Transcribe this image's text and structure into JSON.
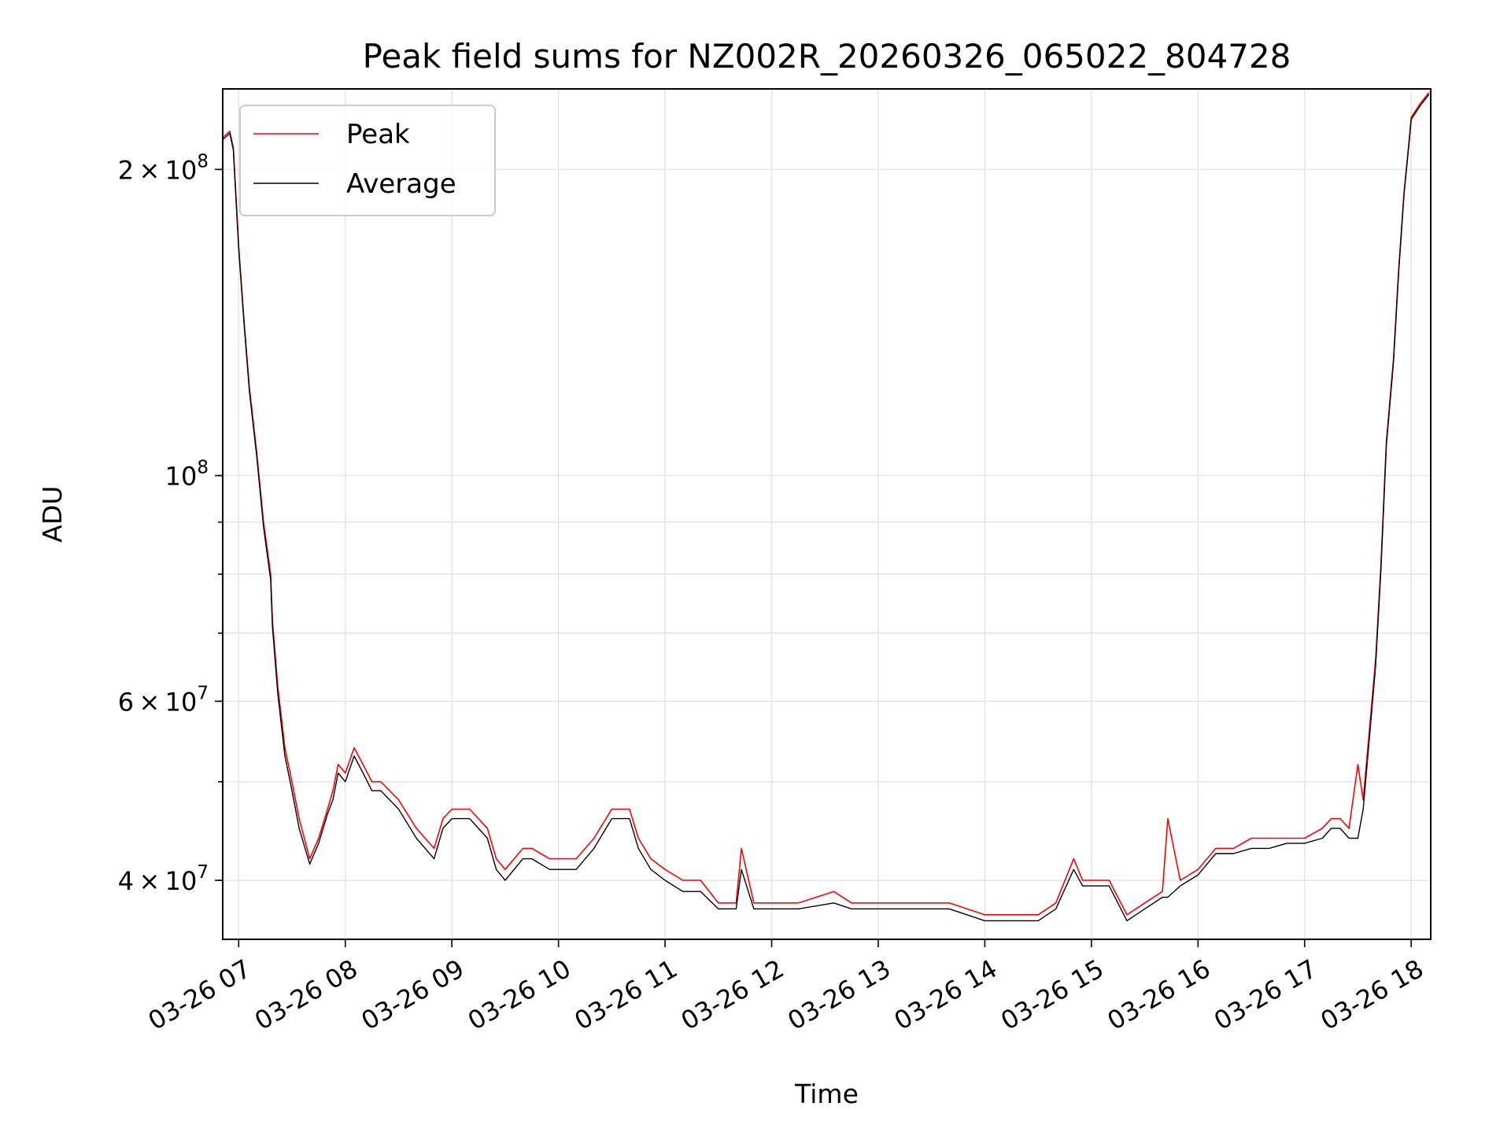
{
  "chart_data": {
    "type": "line",
    "title": "Peak field sums for NZ002R_20260326_065022_804728",
    "xlabel": "Time",
    "ylabel": "ADU",
    "y_scale": "log",
    "ylim": [
      35000000,
      240000000
    ],
    "xlim": [
      "03-26 06:51",
      "03-26 18:11"
    ],
    "grid": true,
    "legend_position": "upper-left",
    "x_ticks": [
      "03-26 07",
      "03-26 08",
      "03-26 09",
      "03-26 10",
      "03-26 11",
      "03-26 12",
      "03-26 13",
      "03-26 14",
      "03-26 15",
      "03-26 16",
      "03-26 17",
      "03-26 18"
    ],
    "y_ticks": [
      {
        "value": 40000000,
        "coef": "4",
        "exp": "7"
      },
      {
        "value": 60000000,
        "coef": "6",
        "exp": "7"
      },
      {
        "value": 100000000,
        "coef": "",
        "exp": "8"
      },
      {
        "value": 200000000,
        "coef": "2",
        "exp": "8"
      }
    ],
    "series": [
      {
        "name": "Peak",
        "color": "#ff0000",
        "x": [
          "03-26 06:51",
          "03-26 06:55",
          "03-26 06:57",
          "03-26 07:00",
          "03-26 07:03",
          "03-26 07:06",
          "03-26 07:10",
          "03-26 07:14",
          "03-26 07:18",
          "03-26 07:19",
          "03-26 07:22",
          "03-26 07:26",
          "03-26 07:30",
          "03-26 07:34",
          "03-26 07:40",
          "03-26 07:45",
          "03-26 07:50",
          "03-26 07:53",
          "03-26 07:56",
          "03-26 08:00",
          "03-26 08:05",
          "03-26 08:10",
          "03-26 08:15",
          "03-26 08:20",
          "03-26 08:30",
          "03-26 08:40",
          "03-26 08:50",
          "03-26 08:55",
          "03-26 09:00",
          "03-26 09:10",
          "03-26 09:20",
          "03-26 09:25",
          "03-26 09:30",
          "03-26 09:40",
          "03-26 09:45",
          "03-26 09:55",
          "03-26 10:00",
          "03-26 10:10",
          "03-26 10:20",
          "03-26 10:30",
          "03-26 10:40",
          "03-26 10:45",
          "03-26 10:52",
          "03-26 11:00",
          "03-26 11:10",
          "03-26 11:20",
          "03-26 11:30",
          "03-26 11:40",
          "03-26 11:43",
          "03-26 11:50",
          "03-26 12:00",
          "03-26 12:15",
          "03-26 12:35",
          "03-26 12:45",
          "03-26 13:00",
          "03-26 13:10",
          "03-26 13:20",
          "03-26 13:30",
          "03-26 13:40",
          "03-26 13:50",
          "03-26 14:00",
          "03-26 14:15",
          "03-26 14:30",
          "03-26 14:40",
          "03-26 14:50",
          "03-26 14:55",
          "03-26 15:00",
          "03-26 15:10",
          "03-26 15:20",
          "03-26 15:30",
          "03-26 15:40",
          "03-26 15:43",
          "03-26 15:50",
          "03-26 16:00",
          "03-26 16:10",
          "03-26 16:20",
          "03-26 16:30",
          "03-26 16:40",
          "03-26 16:50",
          "03-26 17:00",
          "03-26 17:10",
          "03-26 17:15",
          "03-26 17:20",
          "03-26 17:25",
          "03-26 17:30",
          "03-26 17:33",
          "03-26 17:36",
          "03-26 17:40",
          "03-26 17:43",
          "03-26 17:46",
          "03-26 17:50",
          "03-26 17:53",
          "03-26 17:56",
          "03-26 17:59",
          "03-26 18:00",
          "03-26 18:05",
          "03-26 18:10"
        ],
        "y": [
          215000000,
          218000000,
          210000000,
          168000000,
          142000000,
          122000000,
          106000000,
          90000000,
          80000000,
          72000000,
          62000000,
          54000000,
          50000000,
          46000000,
          42000000,
          44000000,
          47000000,
          49000000,
          52000000,
          51000000,
          54000000,
          52000000,
          50000000,
          50000000,
          48000000,
          45000000,
          43000000,
          46000000,
          47000000,
          47000000,
          45000000,
          42000000,
          41000000,
          43000000,
          43000000,
          42000000,
          42000000,
          42000000,
          44000000,
          47000000,
          47000000,
          44000000,
          42000000,
          41000000,
          40000000,
          40000000,
          38000000,
          38000000,
          43000000,
          38000000,
          38000000,
          38000000,
          39000000,
          38000000,
          38000000,
          38000000,
          38000000,
          38000000,
          38000000,
          37500000,
          37000000,
          37000000,
          37000000,
          38000000,
          42000000,
          40000000,
          40000000,
          40000000,
          37000000,
          38000000,
          39000000,
          46000000,
          40000000,
          41000000,
          43000000,
          43000000,
          44000000,
          44000000,
          44000000,
          44000000,
          45000000,
          46000000,
          46000000,
          45000000,
          52000000,
          48000000,
          55000000,
          66000000,
          82000000,
          108000000,
          130000000,
          160000000,
          190000000,
          215000000,
          225000000,
          232000000,
          238000000
        ]
      },
      {
        "name": "Average",
        "color": "#000000",
        "x": [
          "03-26 06:51",
          "03-26 06:55",
          "03-26 06:57",
          "03-26 07:00",
          "03-26 07:03",
          "03-26 07:06",
          "03-26 07:10",
          "03-26 07:14",
          "03-26 07:18",
          "03-26 07:19",
          "03-26 07:22",
          "03-26 07:26",
          "03-26 07:30",
          "03-26 07:34",
          "03-26 07:40",
          "03-26 07:45",
          "03-26 07:50",
          "03-26 07:53",
          "03-26 07:56",
          "03-26 08:00",
          "03-26 08:05",
          "03-26 08:10",
          "03-26 08:15",
          "03-26 08:20",
          "03-26 08:30",
          "03-26 08:40",
          "03-26 08:50",
          "03-26 08:55",
          "03-26 09:00",
          "03-26 09:10",
          "03-26 09:20",
          "03-26 09:25",
          "03-26 09:30",
          "03-26 09:40",
          "03-26 09:45",
          "03-26 09:55",
          "03-26 10:00",
          "03-26 10:10",
          "03-26 10:20",
          "03-26 10:30",
          "03-26 10:40",
          "03-26 10:45",
          "03-26 10:52",
          "03-26 11:00",
          "03-26 11:10",
          "03-26 11:20",
          "03-26 11:30",
          "03-26 11:40",
          "03-26 11:43",
          "03-26 11:50",
          "03-26 12:00",
          "03-26 12:15",
          "03-26 12:35",
          "03-26 12:45",
          "03-26 13:00",
          "03-26 13:10",
          "03-26 13:20",
          "03-26 13:30",
          "03-26 13:40",
          "03-26 13:50",
          "03-26 14:00",
          "03-26 14:15",
          "03-26 14:30",
          "03-26 14:40",
          "03-26 14:50",
          "03-26 14:55",
          "03-26 15:00",
          "03-26 15:10",
          "03-26 15:20",
          "03-26 15:30",
          "03-26 15:40",
          "03-26 15:43",
          "03-26 15:50",
          "03-26 16:00",
          "03-26 16:10",
          "03-26 16:20",
          "03-26 16:30",
          "03-26 16:40",
          "03-26 16:50",
          "03-26 17:00",
          "03-26 17:10",
          "03-26 17:15",
          "03-26 17:20",
          "03-26 17:25",
          "03-26 17:30",
          "03-26 17:33",
          "03-26 17:36",
          "03-26 17:40",
          "03-26 17:43",
          "03-26 17:46",
          "03-26 17:50",
          "03-26 17:53",
          "03-26 17:56",
          "03-26 17:59",
          "03-26 18:00",
          "03-26 18:05",
          "03-26 18:10"
        ],
        "y": [
          214000000,
          217000000,
          209000000,
          167000000,
          141000000,
          121000000,
          105000000,
          89000000,
          79000000,
          71000000,
          61000000,
          53000000,
          49000000,
          45000000,
          41500000,
          43500000,
          46500000,
          48000000,
          51000000,
          50000000,
          53000000,
          51000000,
          49000000,
          49000000,
          47000000,
          44000000,
          42000000,
          45000000,
          46000000,
          46000000,
          44000000,
          41000000,
          40000000,
          42000000,
          42000000,
          41000000,
          41000000,
          41000000,
          43000000,
          46000000,
          46000000,
          43000000,
          41000000,
          40000000,
          39000000,
          39000000,
          37500000,
          37500000,
          41000000,
          37500000,
          37500000,
          37500000,
          38000000,
          37500000,
          37500000,
          37500000,
          37500000,
          37500000,
          37500000,
          37000000,
          36500000,
          36500000,
          36500000,
          37500000,
          41000000,
          39500000,
          39500000,
          39500000,
          36500000,
          37500000,
          38500000,
          38500000,
          39500000,
          40500000,
          42500000,
          42500000,
          43000000,
          43000000,
          43500000,
          43500000,
          44000000,
          45000000,
          45000000,
          44000000,
          44000000,
          47000000,
          54000000,
          65000000,
          81000000,
          107000000,
          129000000,
          159000000,
          189000000,
          214000000,
          224000000,
          231000000,
          237000000
        ]
      }
    ]
  }
}
